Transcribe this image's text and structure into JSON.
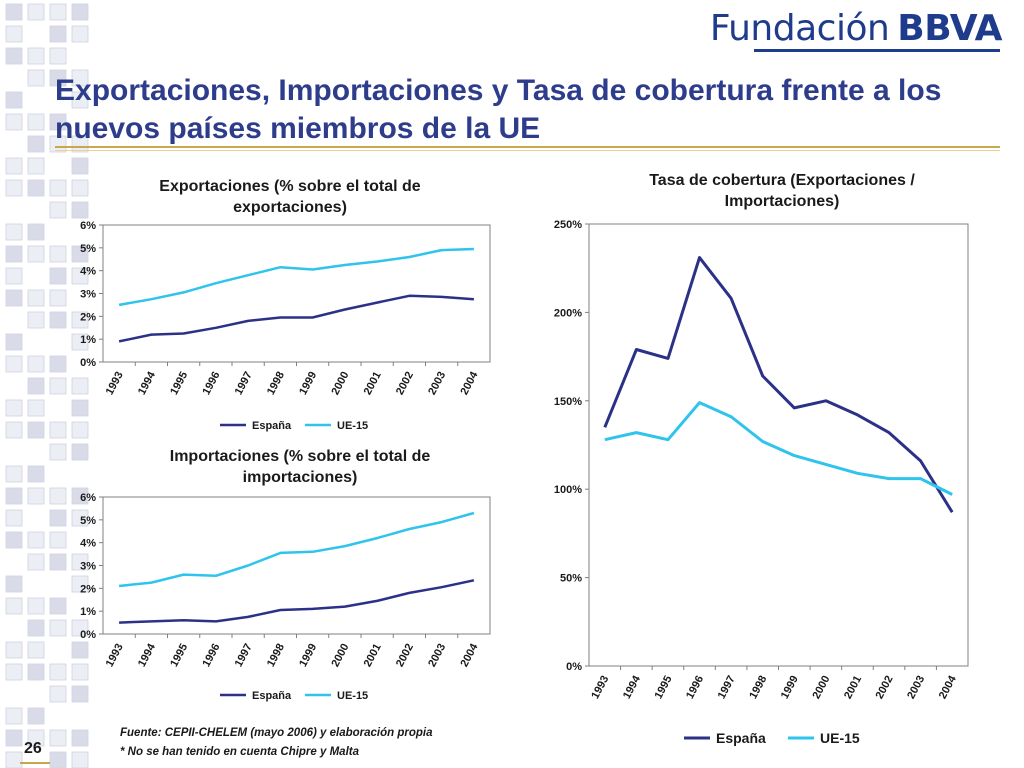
{
  "brand": {
    "name_light": "Fundación",
    "name_bold": "BBVA"
  },
  "slide_title": "Exportaciones, Importaciones y Tasa de cobertura frente a los nuevos países miembros de la UE",
  "page_number": "26",
  "footnotes": {
    "source": "Fuente:  CEPII-CHELEM (mayo 2006) y elaboración propia",
    "note": "* No se han tenido en cuenta Chipre y Malta"
  },
  "colors": {
    "espana": "#2b3187",
    "ue15": "#2ec4ec",
    "title": "#2e3c8c",
    "accent": "#c9a84c"
  },
  "chart_data": [
    {
      "type": "line",
      "title": "Exportaciones (% sobre el total de exportaciones)",
      "categories": [
        "1993",
        "1994",
        "1995",
        "1996",
        "1997",
        "1998",
        "1999",
        "2000",
        "2001",
        "2002",
        "2003",
        "2004"
      ],
      "y_ticks": [
        "0%",
        "1%",
        "2%",
        "3%",
        "4%",
        "5%",
        "6%"
      ],
      "ylim": [
        0,
        6
      ],
      "legend": "bottom",
      "series": [
        {
          "name": "España",
          "values": [
            0.9,
            1.2,
            1.25,
            1.5,
            1.8,
            1.95,
            1.95,
            2.3,
            2.6,
            2.9,
            2.85,
            2.75
          ]
        },
        {
          "name": "UE-15",
          "values": [
            2.5,
            2.75,
            3.05,
            3.45,
            3.8,
            4.15,
            4.05,
            4.25,
            4.4,
            4.6,
            4.9,
            4.95
          ]
        }
      ]
    },
    {
      "type": "line",
      "title": "Importaciones (% sobre el total de importaciones)",
      "categories": [
        "1993",
        "1994",
        "1995",
        "1996",
        "1997",
        "1998",
        "1999",
        "2000",
        "2001",
        "2002",
        "2003",
        "2004"
      ],
      "y_ticks": [
        "0%",
        "1%",
        "2%",
        "3%",
        "4%",
        "5%",
        "6%"
      ],
      "ylim": [
        0,
        6
      ],
      "legend": "bottom",
      "series": [
        {
          "name": "España",
          "values": [
            0.5,
            0.55,
            0.6,
            0.55,
            0.75,
            1.05,
            1.1,
            1.2,
            1.45,
            1.8,
            2.05,
            2.35
          ]
        },
        {
          "name": "UE-15",
          "values": [
            2.1,
            2.25,
            2.6,
            2.55,
            3.0,
            3.55,
            3.6,
            3.85,
            4.2,
            4.6,
            4.9,
            5.3
          ]
        }
      ]
    },
    {
      "type": "line",
      "title": "Tasa de cobertura (Exportaciones / Importaciones)",
      "categories": [
        "1993",
        "1994",
        "1995",
        "1996",
        "1997",
        "1998",
        "1999",
        "2000",
        "2001",
        "2002",
        "2003",
        "2004"
      ],
      "y_ticks": [
        "0%",
        "50%",
        "100%",
        "150%",
        "200%",
        "250%"
      ],
      "ylim": [
        0,
        250
      ],
      "legend": "bottom",
      "series": [
        {
          "name": "España",
          "values": [
            135,
            179,
            174,
            231,
            208,
            164,
            146,
            150,
            142,
            132,
            116,
            87
          ]
        },
        {
          "name": "UE-15",
          "values": [
            128,
            132,
            128,
            149,
            141,
            127,
            119,
            114,
            109,
            106,
            106,
            97
          ]
        }
      ]
    }
  ]
}
